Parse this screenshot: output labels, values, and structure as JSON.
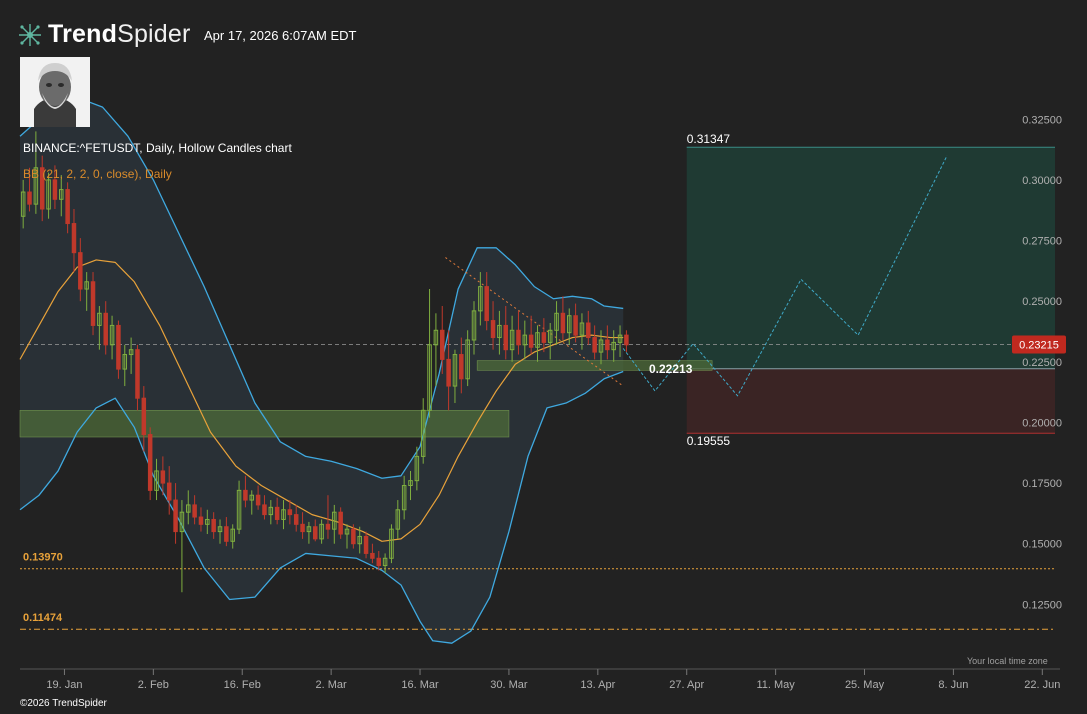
{
  "header": {
    "brand_bold": "Trend",
    "brand_light": "Spider",
    "timestamp": "Apr 17, 2026 6:07AM EDT",
    "symbol_line": "BINANCE:^FETUSDT, Daily, Hollow Candles chart",
    "indicator_line": "BB (21, 2, 2, 0, close), Daily"
  },
  "footer": {
    "copyright": "©2026 TrendSpider",
    "timezone_note": "Your local time zone"
  },
  "colors": {
    "background": "#222222",
    "bull": "#7fae3f",
    "bear": "#c0392b",
    "bollinger_band": "#3fa9e0",
    "bollinger_mid": "#e8a23a",
    "support_zone": "#4d6b3a",
    "level_line": "#e8a23a",
    "target_box": "#1f3a33",
    "stop_box": "#3a2424",
    "price_badge": "#c0291f",
    "forecast_line": "#3fa9c8"
  },
  "chart_data": {
    "type": "candlestick",
    "y_axis": {
      "range": [
        0.1,
        0.335
      ],
      "ticks": [
        "0.32500",
        "0.30000",
        "0.27500",
        "0.25000",
        "0.22500",
        "0.20000",
        "0.17500",
        "0.15000",
        "0.12500"
      ],
      "tick_values": [
        0.325,
        0.3,
        0.275,
        0.25,
        0.225,
        0.2,
        0.175,
        0.15,
        0.125
      ]
    },
    "x_axis": {
      "range": [
        "2026-01-12",
        "2026-06-24"
      ],
      "ticks": [
        "19. Jan",
        "2. Feb",
        "16. Feb",
        "2. Mar",
        "16. Mar",
        "30. Mar",
        "13. Apr",
        "27. Apr",
        "11. May",
        "25. May",
        "8. Jun",
        "22. Jun"
      ],
      "tick_dates": [
        "2026-01-19",
        "2026-02-02",
        "2026-02-16",
        "2026-03-02",
        "2026-03-16",
        "2026-03-30",
        "2026-04-13",
        "2026-04-27",
        "2026-05-11",
        "2026-05-25",
        "2026-06-08",
        "2026-06-22"
      ]
    },
    "current_price": "0.23215",
    "current_price_value": 0.23215,
    "levels": [
      {
        "label": "0.13970",
        "value": 0.1397
      },
      {
        "label": "0.11474",
        "value": 0.11474
      }
    ],
    "target": {
      "label": "0.31347",
      "value": 0.31347,
      "start": "2026-04-27"
    },
    "entry": {
      "label": "0.22213",
      "value": 0.22213
    },
    "stop": {
      "label": "0.19555",
      "value": 0.19555
    },
    "support_zones": [
      {
        "low": 0.194,
        "high": 0.205,
        "from": "2026-01-12",
        "to": "2026-03-30"
      },
      {
        "low": 0.2215,
        "high": 0.2255,
        "from": "2026-03-25",
        "to": "2026-05-01"
      }
    ],
    "trendline": {
      "from": [
        "2026-03-20",
        0.268
      ],
      "to": [
        "2026-04-17",
        0.215
      ]
    },
    "forecast_path": [
      [
        "2026-04-17",
        0.2305
      ],
      [
        "2026-04-22",
        0.213
      ],
      [
        "2026-04-28",
        0.2325
      ],
      [
        "2026-05-05",
        0.211
      ],
      [
        "2026-05-15",
        0.259
      ],
      [
        "2026-05-24",
        0.236
      ],
      [
        "2026-06-07",
        0.31
      ]
    ],
    "candles": [
      [
        "2026-01-12",
        0.285,
        0.3,
        0.28,
        0.295
      ],
      [
        "2026-01-13",
        0.295,
        0.305,
        0.287,
        0.29
      ],
      [
        "2026-01-14",
        0.29,
        0.32,
        0.286,
        0.305
      ],
      [
        "2026-01-15",
        0.305,
        0.31,
        0.283,
        0.288
      ],
      [
        "2026-01-16",
        0.288,
        0.303,
        0.284,
        0.3
      ],
      [
        "2026-01-17",
        0.3,
        0.306,
        0.288,
        0.292
      ],
      [
        "2026-01-18",
        0.292,
        0.302,
        0.285,
        0.296
      ],
      [
        "2026-01-19",
        0.296,
        0.299,
        0.278,
        0.282
      ],
      [
        "2026-01-20",
        0.282,
        0.288,
        0.262,
        0.27
      ],
      [
        "2026-01-21",
        0.27,
        0.276,
        0.25,
        0.255
      ],
      [
        "2026-01-22",
        0.255,
        0.262,
        0.246,
        0.258
      ],
      [
        "2026-01-23",
        0.258,
        0.262,
        0.236,
        0.24
      ],
      [
        "2026-01-24",
        0.24,
        0.248,
        0.23,
        0.245
      ],
      [
        "2026-01-25",
        0.245,
        0.25,
        0.228,
        0.232
      ],
      [
        "2026-01-26",
        0.232,
        0.244,
        0.226,
        0.24
      ],
      [
        "2026-01-27",
        0.24,
        0.242,
        0.218,
        0.222
      ],
      [
        "2026-01-28",
        0.222,
        0.232,
        0.215,
        0.228
      ],
      [
        "2026-01-29",
        0.228,
        0.235,
        0.22,
        0.23
      ],
      [
        "2026-01-30",
        0.23,
        0.232,
        0.205,
        0.21
      ],
      [
        "2026-01-31",
        0.21,
        0.215,
        0.188,
        0.195
      ],
      [
        "2026-02-01",
        0.195,
        0.198,
        0.168,
        0.172
      ],
      [
        "2026-02-02",
        0.172,
        0.185,
        0.168,
        0.18
      ],
      [
        "2026-02-03",
        0.18,
        0.186,
        0.17,
        0.175
      ],
      [
        "2026-02-04",
        0.175,
        0.182,
        0.162,
        0.168
      ],
      [
        "2026-02-05",
        0.168,
        0.175,
        0.15,
        0.155
      ],
      [
        "2026-02-06",
        0.155,
        0.168,
        0.13,
        0.163
      ],
      [
        "2026-02-07",
        0.163,
        0.172,
        0.158,
        0.166
      ],
      [
        "2026-02-08",
        0.166,
        0.17,
        0.158,
        0.161
      ],
      [
        "2026-02-09",
        0.161,
        0.165,
        0.155,
        0.158
      ],
      [
        "2026-02-10",
        0.158,
        0.164,
        0.154,
        0.16
      ],
      [
        "2026-02-11",
        0.16,
        0.163,
        0.152,
        0.155
      ],
      [
        "2026-02-12",
        0.155,
        0.16,
        0.15,
        0.157
      ],
      [
        "2026-02-13",
        0.157,
        0.161,
        0.149,
        0.151
      ],
      [
        "2026-02-14",
        0.151,
        0.158,
        0.148,
        0.156
      ],
      [
        "2026-02-15",
        0.156,
        0.176,
        0.154,
        0.172
      ],
      [
        "2026-02-16",
        0.172,
        0.178,
        0.165,
        0.168
      ],
      [
        "2026-02-17",
        0.168,
        0.172,
        0.162,
        0.17
      ],
      [
        "2026-02-18",
        0.17,
        0.174,
        0.164,
        0.166
      ],
      [
        "2026-02-19",
        0.166,
        0.17,
        0.16,
        0.162
      ],
      [
        "2026-02-20",
        0.162,
        0.168,
        0.158,
        0.165
      ],
      [
        "2026-02-21",
        0.165,
        0.169,
        0.158,
        0.16
      ],
      [
        "2026-02-22",
        0.16,
        0.168,
        0.156,
        0.164
      ],
      [
        "2026-02-23",
        0.164,
        0.168,
        0.158,
        0.162
      ],
      [
        "2026-02-24",
        0.162,
        0.166,
        0.155,
        0.158
      ],
      [
        "2026-02-25",
        0.158,
        0.163,
        0.152,
        0.155
      ],
      [
        "2026-02-26",
        0.155,
        0.159,
        0.15,
        0.157
      ],
      [
        "2026-02-27",
        0.157,
        0.16,
        0.151,
        0.152
      ],
      [
        "2026-02-28",
        0.152,
        0.16,
        0.15,
        0.158
      ],
      [
        "2026-03-01",
        0.158,
        0.17,
        0.152,
        0.156
      ],
      [
        "2026-03-02",
        0.156,
        0.166,
        0.15,
        0.163
      ],
      [
        "2026-03-03",
        0.163,
        0.165,
        0.152,
        0.154
      ],
      [
        "2026-03-04",
        0.154,
        0.158,
        0.148,
        0.156
      ],
      [
        "2026-03-05",
        0.156,
        0.158,
        0.148,
        0.15
      ],
      [
        "2026-03-06",
        0.15,
        0.157,
        0.146,
        0.153
      ],
      [
        "2026-03-07",
        0.153,
        0.155,
        0.144,
        0.146
      ],
      [
        "2026-03-08",
        0.146,
        0.15,
        0.142,
        0.144
      ],
      [
        "2026-03-09",
        0.144,
        0.147,
        0.139,
        0.141
      ],
      [
        "2026-03-10",
        0.141,
        0.146,
        0.138,
        0.144
      ],
      [
        "2026-03-11",
        0.144,
        0.158,
        0.142,
        0.156
      ],
      [
        "2026-03-12",
        0.156,
        0.168,
        0.152,
        0.164
      ],
      [
        "2026-03-13",
        0.164,
        0.178,
        0.16,
        0.174
      ],
      [
        "2026-03-14",
        0.174,
        0.18,
        0.168,
        0.176
      ],
      [
        "2026-03-15",
        0.176,
        0.19,
        0.172,
        0.186
      ],
      [
        "2026-03-16",
        0.186,
        0.21,
        0.183,
        0.205
      ],
      [
        "2026-03-17",
        0.205,
        0.255,
        0.202,
        0.232
      ],
      [
        "2026-03-18",
        0.232,
        0.245,
        0.215,
        0.238
      ],
      [
        "2026-03-19",
        0.238,
        0.248,
        0.22,
        0.226
      ],
      [
        "2026-03-20",
        0.226,
        0.238,
        0.205,
        0.215
      ],
      [
        "2026-03-21",
        0.215,
        0.23,
        0.208,
        0.228
      ],
      [
        "2026-03-22",
        0.228,
        0.235,
        0.212,
        0.218
      ],
      [
        "2026-03-23",
        0.218,
        0.238,
        0.215,
        0.234
      ],
      [
        "2026-03-24",
        0.234,
        0.25,
        0.228,
        0.246
      ],
      [
        "2026-03-25",
        0.246,
        0.262,
        0.24,
        0.256
      ],
      [
        "2026-03-26",
        0.256,
        0.262,
        0.238,
        0.242
      ],
      [
        "2026-03-27",
        0.242,
        0.25,
        0.23,
        0.235
      ],
      [
        "2026-03-28",
        0.235,
        0.246,
        0.228,
        0.24
      ],
      [
        "2026-03-29",
        0.24,
        0.248,
        0.226,
        0.23
      ],
      [
        "2026-03-30",
        0.23,
        0.244,
        0.225,
        0.238
      ],
      [
        "2026-03-31",
        0.238,
        0.246,
        0.228,
        0.232
      ],
      [
        "2026-04-01",
        0.232,
        0.242,
        0.226,
        0.236
      ],
      [
        "2026-04-02",
        0.236,
        0.244,
        0.228,
        0.231
      ],
      [
        "2026-04-03",
        0.231,
        0.24,
        0.225,
        0.237
      ],
      [
        "2026-04-04",
        0.237,
        0.243,
        0.229,
        0.233
      ],
      [
        "2026-04-05",
        0.233,
        0.241,
        0.226,
        0.238
      ],
      [
        "2026-04-06",
        0.238,
        0.25,
        0.232,
        0.245
      ],
      [
        "2026-04-07",
        0.245,
        0.252,
        0.234,
        0.237
      ],
      [
        "2026-04-08",
        0.237,
        0.247,
        0.232,
        0.244
      ],
      [
        "2026-04-09",
        0.244,
        0.249,
        0.233,
        0.236
      ],
      [
        "2026-04-10",
        0.236,
        0.245,
        0.23,
        0.241
      ],
      [
        "2026-04-11",
        0.241,
        0.246,
        0.232,
        0.235
      ],
      [
        "2026-04-12",
        0.235,
        0.24,
        0.226,
        0.229
      ],
      [
        "2026-04-13",
        0.229,
        0.238,
        0.224,
        0.234
      ],
      [
        "2026-04-14",
        0.234,
        0.24,
        0.226,
        0.23
      ],
      [
        "2026-04-15",
        0.23,
        0.238,
        0.225,
        0.233
      ],
      [
        "2026-04-16",
        0.233,
        0.24,
        0.227,
        0.236
      ],
      [
        "2026-04-17",
        0.236,
        0.238,
        0.229,
        0.232
      ]
    ],
    "bb_upper": [
      [
        "2026-01-12",
        0.318
      ],
      [
        "2026-01-15",
        0.325
      ],
      [
        "2026-01-18",
        0.331
      ],
      [
        "2026-01-21",
        0.334
      ],
      [
        "2026-01-25",
        0.33
      ],
      [
        "2026-01-29",
        0.318
      ],
      [
        "2026-02-02",
        0.3
      ],
      [
        "2026-02-06",
        0.278
      ],
      [
        "2026-02-10",
        0.256
      ],
      [
        "2026-02-14",
        0.232
      ],
      [
        "2026-02-18",
        0.208
      ],
      [
        "2026-02-22",
        0.192
      ],
      [
        "2026-02-26",
        0.186
      ],
      [
        "2026-03-02",
        0.184
      ],
      [
        "2026-03-06",
        0.181
      ],
      [
        "2026-03-10",
        0.177
      ],
      [
        "2026-03-13",
        0.178
      ],
      [
        "2026-03-16",
        0.19
      ],
      [
        "2026-03-19",
        0.22
      ],
      [
        "2026-03-22",
        0.255
      ],
      [
        "2026-03-25",
        0.272
      ],
      [
        "2026-03-28",
        0.272
      ],
      [
        "2026-03-31",
        0.265
      ],
      [
        "2026-04-03",
        0.256
      ],
      [
        "2026-04-06",
        0.251
      ],
      [
        "2026-04-09",
        0.252
      ],
      [
        "2026-04-12",
        0.251
      ],
      [
        "2026-04-14",
        0.248
      ],
      [
        "2026-04-17",
        0.247
      ]
    ],
    "bb_mid": [
      [
        "2026-01-12",
        0.226
      ],
      [
        "2026-01-15",
        0.24
      ],
      [
        "2026-01-18",
        0.254
      ],
      [
        "2026-01-21",
        0.264
      ],
      [
        "2026-01-24",
        0.267
      ],
      [
        "2026-01-27",
        0.266
      ],
      [
        "2026-01-30",
        0.258
      ],
      [
        "2026-02-03",
        0.24
      ],
      [
        "2026-02-07",
        0.218
      ],
      [
        "2026-02-11",
        0.196
      ],
      [
        "2026-02-15",
        0.182
      ],
      [
        "2026-02-19",
        0.174
      ],
      [
        "2026-02-23",
        0.168
      ],
      [
        "2026-02-27",
        0.162
      ],
      [
        "2026-03-03",
        0.159
      ],
      [
        "2026-03-07",
        0.155
      ],
      [
        "2026-03-10",
        0.151
      ],
      [
        "2026-03-13",
        0.152
      ],
      [
        "2026-03-16",
        0.158
      ],
      [
        "2026-03-19",
        0.17
      ],
      [
        "2026-03-22",
        0.186
      ],
      [
        "2026-03-25",
        0.2
      ],
      [
        "2026-03-28",
        0.213
      ],
      [
        "2026-03-31",
        0.224
      ],
      [
        "2026-04-03",
        0.229
      ],
      [
        "2026-04-06",
        0.232
      ],
      [
        "2026-04-09",
        0.235
      ],
      [
        "2026-04-12",
        0.236
      ],
      [
        "2026-04-15",
        0.235
      ],
      [
        "2026-04-17",
        0.235
      ]
    ],
    "bb_lower": [
      [
        "2026-01-12",
        0.164
      ],
      [
        "2026-01-15",
        0.17
      ],
      [
        "2026-01-18",
        0.18
      ],
      [
        "2026-01-21",
        0.196
      ],
      [
        "2026-01-24",
        0.206
      ],
      [
        "2026-01-27",
        0.21
      ],
      [
        "2026-01-30",
        0.198
      ],
      [
        "2026-02-02",
        0.178
      ],
      [
        "2026-02-06",
        0.16
      ],
      [
        "2026-02-10",
        0.14
      ],
      [
        "2026-02-14",
        0.127
      ],
      [
        "2026-02-18",
        0.128
      ],
      [
        "2026-02-22",
        0.14
      ],
      [
        "2026-02-26",
        0.146
      ],
      [
        "2026-03-02",
        0.145
      ],
      [
        "2026-03-06",
        0.144
      ],
      [
        "2026-03-10",
        0.139
      ],
      [
        "2026-03-13",
        0.133
      ],
      [
        "2026-03-16",
        0.118
      ],
      [
        "2026-03-18",
        0.11
      ],
      [
        "2026-03-21",
        0.109
      ],
      [
        "2026-03-24",
        0.114
      ],
      [
        "2026-03-27",
        0.128
      ],
      [
        "2026-03-30",
        0.155
      ],
      [
        "2026-04-02",
        0.186
      ],
      [
        "2026-04-05",
        0.206
      ],
      [
        "2026-04-08",
        0.208
      ],
      [
        "2026-04-11",
        0.212
      ],
      [
        "2026-04-14",
        0.218
      ],
      [
        "2026-04-17",
        0.221
      ]
    ]
  }
}
